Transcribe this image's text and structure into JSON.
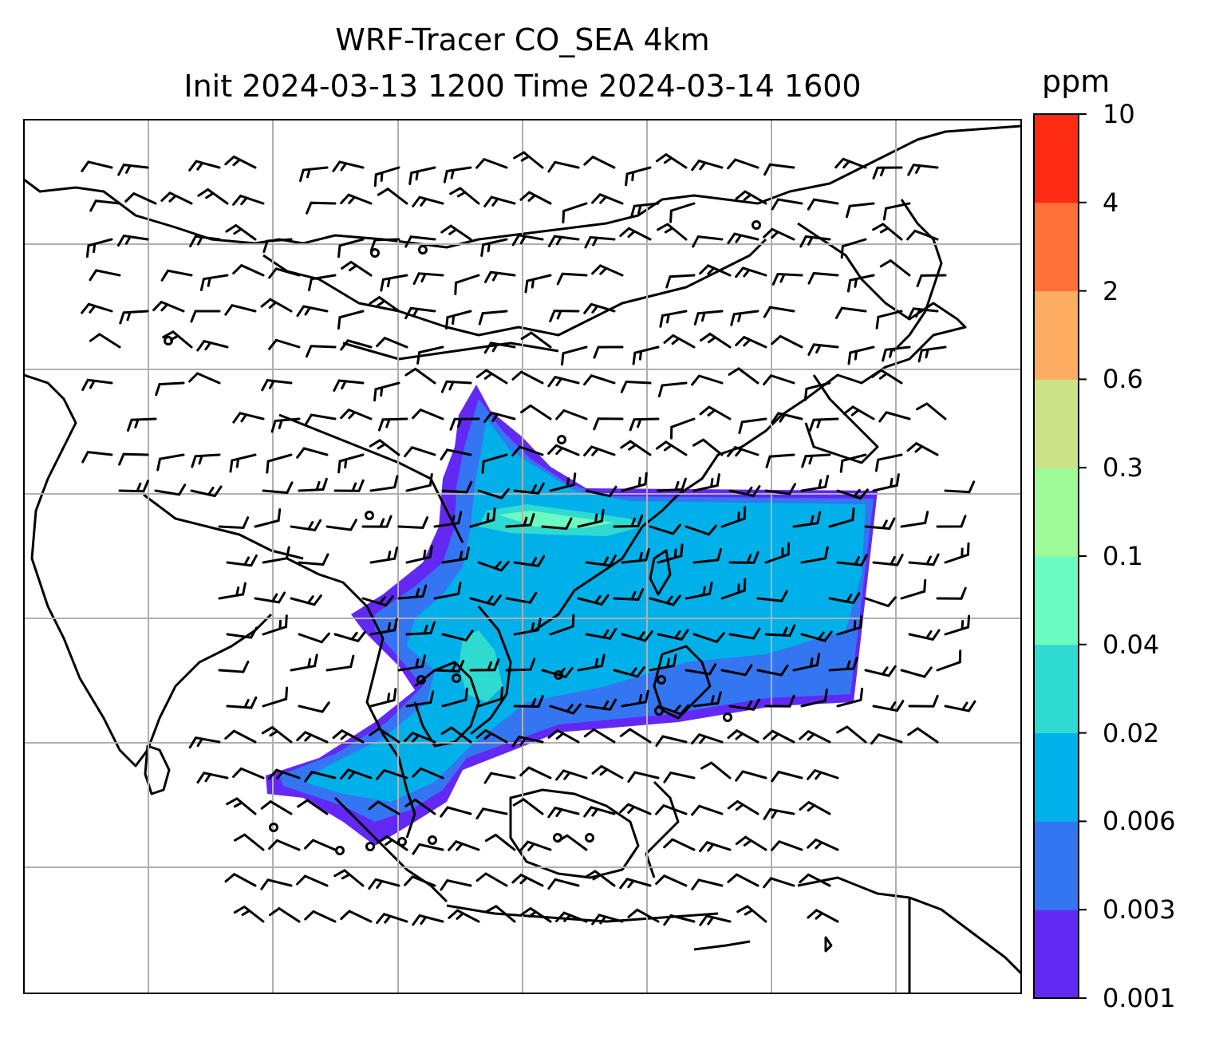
{
  "title": {
    "line1": "WRF-Tracer CO_SEA 4km",
    "line2": "Init 2024-03-13 1200 Time 2024-03-14 1600"
  },
  "colorbar": {
    "unit": "ppm",
    "levels": [
      "0.001",
      "0.003",
      "0.006",
      "0.02",
      "0.04",
      "0.1",
      "0.3",
      "0.6",
      "2",
      "4",
      "10"
    ],
    "colors": [
      "#6329f4",
      "#3475f2",
      "#00b1e9",
      "#2fdad0",
      "#6bfbc0",
      "#9ffa98",
      "#cde287",
      "#fcad62",
      "#fe7139",
      "#fd2a14"
    ]
  },
  "map": {
    "gridlines": true,
    "coastline_color": "#000000",
    "grid_color": "#b0b0b0",
    "barb_color": "#000000"
  }
}
